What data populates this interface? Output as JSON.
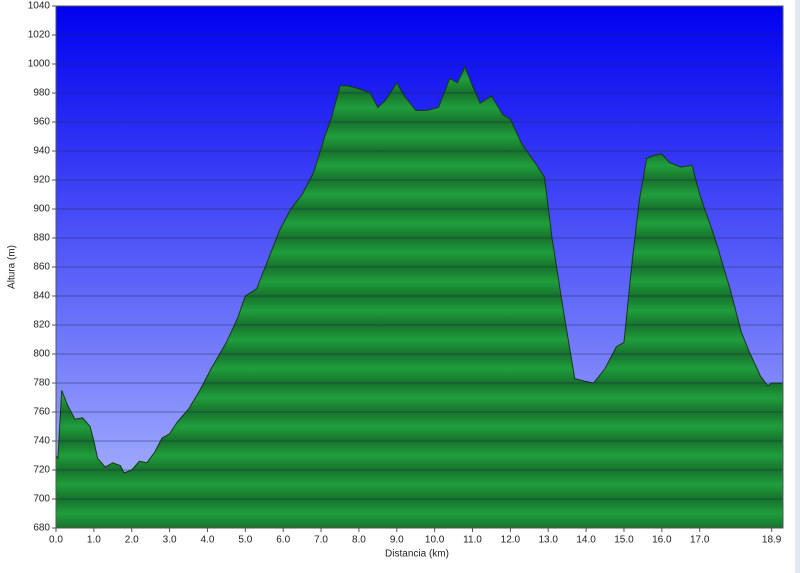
{
  "chart_data": {
    "type": "area",
    "xlabel": "Distancia  (km)",
    "ylabel": "Altura (m)",
    "x": [
      0.0,
      0.05,
      0.15,
      0.3,
      0.5,
      0.7,
      0.9,
      1.0,
      1.1,
      1.3,
      1.5,
      1.7,
      1.8,
      2.0,
      2.2,
      2.4,
      2.6,
      2.8,
      3.0,
      3.2,
      3.5,
      3.8,
      4.1,
      4.5,
      4.8,
      5.0,
      5.3,
      5.6,
      5.9,
      6.2,
      6.5,
      6.8,
      7.1,
      7.3,
      7.5,
      7.7,
      8.0,
      8.3,
      8.5,
      8.7,
      8.9,
      9.0,
      9.2,
      9.5,
      9.8,
      10.1,
      10.4,
      10.6,
      10.8,
      11.0,
      11.2,
      11.5,
      11.8,
      12.0,
      12.3,
      12.7,
      12.9,
      13.1,
      13.4,
      13.7,
      14.0,
      14.2,
      14.5,
      14.8,
      15.0,
      15.2,
      15.4,
      15.6,
      15.8,
      16.0,
      16.2,
      16.5,
      16.8,
      17.0,
      17.4,
      17.8,
      18.1,
      18.3,
      18.6,
      18.8,
      18.9,
      19.2
    ],
    "values": [
      730,
      728,
      775,
      765,
      755,
      756,
      750,
      740,
      728,
      722,
      725,
      723,
      718,
      720,
      726,
      725,
      732,
      742,
      745,
      753,
      762,
      775,
      790,
      808,
      825,
      840,
      845,
      865,
      885,
      900,
      910,
      925,
      950,
      965,
      985,
      985,
      983,
      980,
      970,
      975,
      983,
      987,
      978,
      968,
      968,
      970,
      990,
      987,
      998,
      985,
      973,
      978,
      965,
      962,
      945,
      930,
      922,
      880,
      830,
      783,
      781,
      780,
      790,
      805,
      808,
      860,
      905,
      935,
      937,
      938,
      932,
      929,
      930,
      910,
      880,
      845,
      815,
      802,
      785,
      778,
      780,
      780
    ],
    "color": "#1f9e3c",
    "xlim": [
      0,
      19.2
    ],
    "ylim": [
      680,
      1040
    ],
    "xticks": [
      {
        "value": 0,
        "label": "0.0"
      },
      {
        "value": 1,
        "label": "1.0"
      },
      {
        "value": 2,
        "label": "2.0"
      },
      {
        "value": 3,
        "label": "3.0"
      },
      {
        "value": 4,
        "label": "4.0"
      },
      {
        "value": 5,
        "label": "5.0"
      },
      {
        "value": 6,
        "label": "6.0"
      },
      {
        "value": 7,
        "label": "7.0"
      },
      {
        "value": 8,
        "label": "8.0"
      },
      {
        "value": 9,
        "label": "9.0"
      },
      {
        "value": 10,
        "label": "10.0"
      },
      {
        "value": 11,
        "label": "11.0"
      },
      {
        "value": 12,
        "label": "12.0"
      },
      {
        "value": 13,
        "label": "13.0"
      },
      {
        "value": 14,
        "label": "14.0"
      },
      {
        "value": 15,
        "label": "15.0"
      },
      {
        "value": 16,
        "label": "16.0"
      },
      {
        "value": 17,
        "label": "17.0"
      },
      18.9
    ],
    "yticks": [
      680,
      700,
      720,
      740,
      760,
      780,
      800,
      820,
      840,
      860,
      880,
      900,
      920,
      940,
      960,
      980,
      1000,
      1020,
      1040
    ],
    "grid": true
  }
}
